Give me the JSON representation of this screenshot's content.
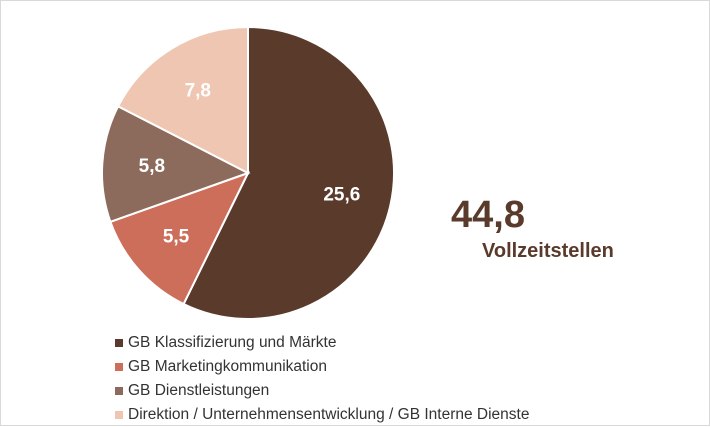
{
  "chart_data": {
    "type": "pie",
    "slices": [
      {
        "label": "GB Klassifizierung und Märkte",
        "value": 25.6,
        "value_text": "25,6",
        "color": "#5a3a2b"
      },
      {
        "label": "GB Marketingkommunikation",
        "value": 5.5,
        "value_text": "5,5",
        "color": "#cd6e5b"
      },
      {
        "label": "GB Dienstleistungen",
        "value": 5.8,
        "value_text": "5,8",
        "color": "#8c6b5c"
      },
      {
        "label": "Direktion / Unternehmensentwicklung / GB Interne Dienste",
        "value": 7.8,
        "value_text": "7,8",
        "color": "#efc6b2"
      }
    ],
    "start_angle_deg": 0,
    "direction": "clockwise",
    "legend_position": "bottom-left"
  },
  "summary": {
    "total": "44,8",
    "label": "Vollzeitstellen"
  }
}
